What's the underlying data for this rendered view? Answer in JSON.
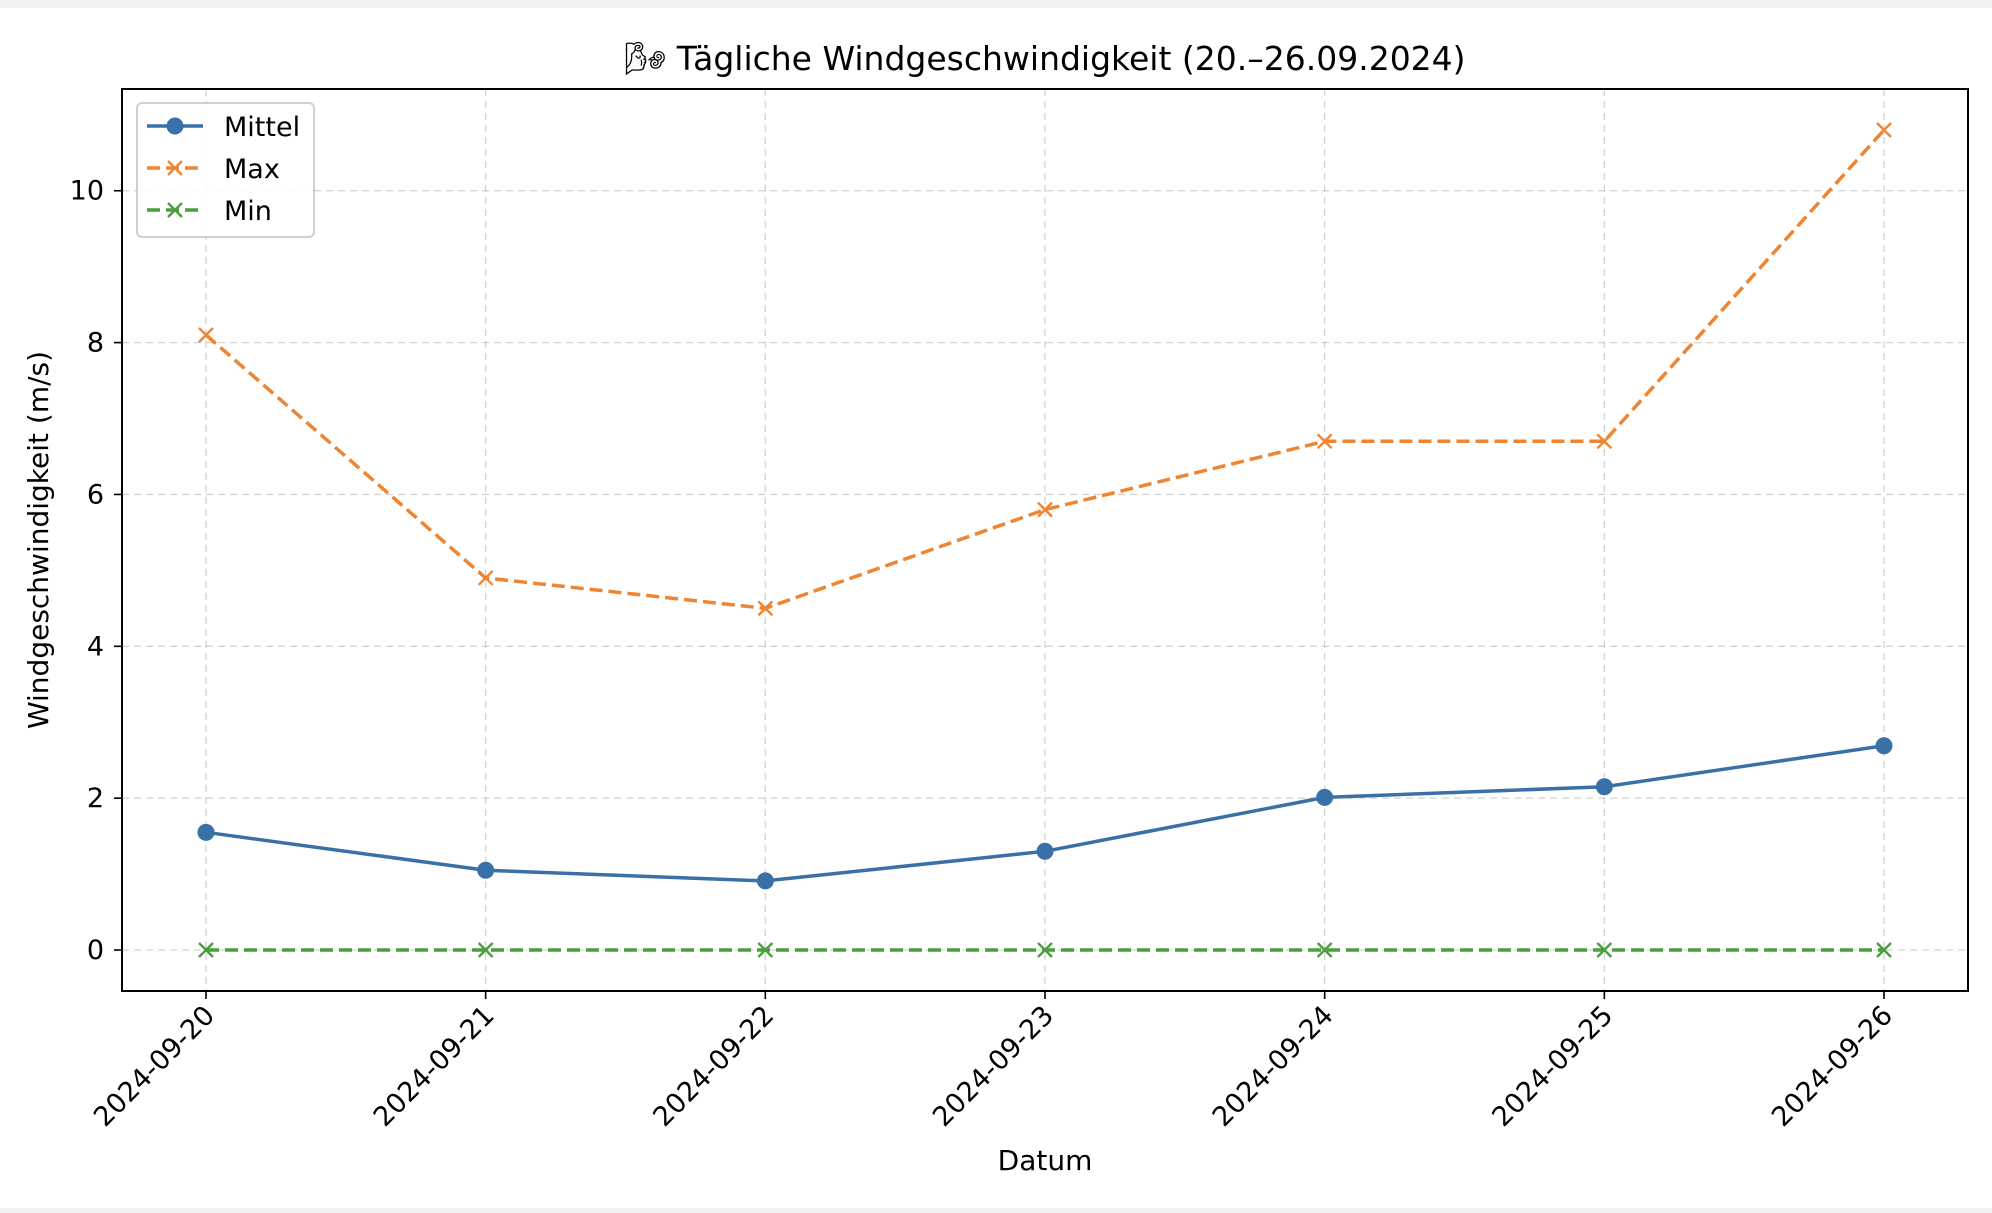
{
  "chart_data": {
    "type": "line",
    "title": "🌬 Tägliche Windgeschwindigkeit (20.–26.09.2024)",
    "xlabel": "Datum",
    "ylabel": "Windgeschwindigkeit (m/s)",
    "categories": [
      "2024-09-20",
      "2024-09-21",
      "2024-09-22",
      "2024-09-23",
      "2024-09-24",
      "2024-09-25",
      "2024-09-26"
    ],
    "ylim": [
      -0.54,
      11.34
    ],
    "yticks": [
      0,
      2,
      4,
      6,
      8,
      10
    ],
    "grid": true,
    "legend_position": "top-left",
    "series": [
      {
        "name": "Mittel",
        "values": [
          1.55,
          1.05,
          0.91,
          1.3,
          2.01,
          2.15,
          2.69
        ],
        "color": "#3a70a8",
        "style": "solid",
        "marker": "circle"
      },
      {
        "name": "Max",
        "values": [
          8.1,
          4.9,
          4.5,
          5.8,
          6.7,
          6.7,
          10.8
        ],
        "color": "#ee8532",
        "style": "dashed",
        "marker": "x"
      },
      {
        "name": "Min",
        "values": [
          0,
          0,
          0,
          0,
          0,
          0,
          0
        ],
        "color": "#4a9e3e",
        "style": "dashed",
        "marker": "x"
      }
    ]
  }
}
